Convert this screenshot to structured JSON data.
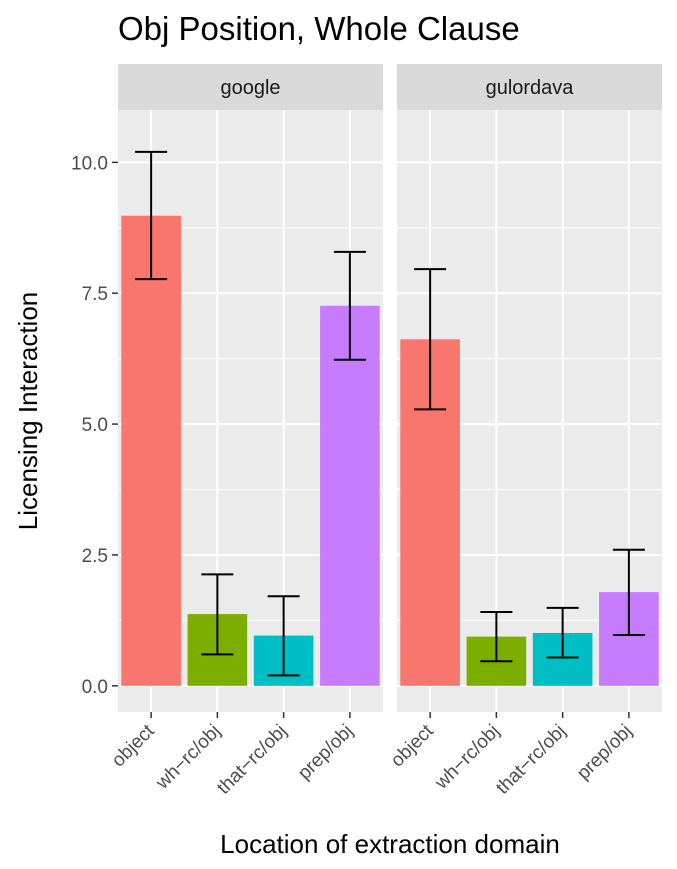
{
  "chart_data": {
    "type": "bar",
    "title": "Obj Position, Whole Clause",
    "xlabel": "Location of extraction domain",
    "ylabel": "Licensing Interaction",
    "categories": [
      "object",
      "wh−rc/obj",
      "that−rc/obj",
      "prep/obj"
    ],
    "category_colors": [
      "#F8766D",
      "#7CAE00",
      "#00BFC4",
      "#C77CFF"
    ],
    "yticks": [
      0.0,
      2.5,
      5.0,
      7.5,
      10.0
    ],
    "ytick_labels": [
      "0.0",
      "2.5",
      "5.0",
      "7.5",
      "10.0"
    ],
    "ylim": [
      -0.5,
      11.0
    ],
    "grid": true,
    "legend": "none",
    "panels": [
      {
        "name": "google",
        "values": [
          8.98,
          1.37,
          0.96,
          7.26
        ],
        "error_low": [
          7.77,
          0.6,
          0.2,
          6.23
        ],
        "error_high": [
          10.2,
          2.13,
          1.71,
          8.29
        ]
      },
      {
        "name": "gulordava",
        "values": [
          6.62,
          0.94,
          1.01,
          1.79
        ],
        "error_low": [
          5.28,
          0.47,
          0.54,
          0.97
        ],
        "error_high": [
          7.96,
          1.41,
          1.49,
          2.6
        ]
      }
    ]
  }
}
